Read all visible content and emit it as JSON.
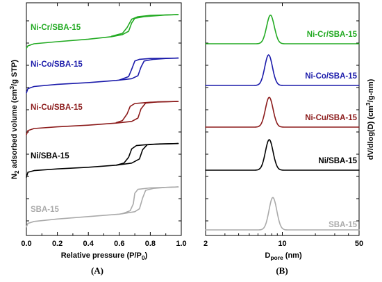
{
  "chart_data": [
    {
      "type": "line",
      "panel_label": "(A)",
      "xlabel": "Relative pressure (P/P",
      "xlabel_sub": "0",
      "xlabel_end": ")",
      "ylabel_prefix": "N",
      "ylabel_sub": "2",
      "ylabel_mid": " adsorbed volume (cm",
      "ylabel_sup": "3",
      "ylabel_end": "/g STP)",
      "xlim": [
        0.0,
        1.0
      ],
      "xticks": [
        "0.0",
        "0.2",
        "0.4",
        "0.6",
        "0.8",
        "1.0"
      ],
      "y_ticks_labeled": false,
      "grid": false,
      "legend": "inline labels",
      "series": [
        {
          "name": "Ni-Cr/SBA-15",
          "color": "#22aa22",
          "adsorption": [
            [
              0.0,
              0.14
            ],
            [
              0.01,
              0.2
            ],
            [
              0.05,
              0.25
            ],
            [
              0.2,
              0.3
            ],
            [
              0.4,
              0.36
            ],
            [
              0.55,
              0.42
            ],
            [
              0.62,
              0.47
            ],
            [
              0.66,
              0.55
            ],
            [
              0.68,
              0.75
            ],
            [
              0.7,
              0.86
            ],
            [
              0.76,
              0.9
            ],
            [
              0.9,
              0.94
            ],
            [
              0.98,
              0.95
            ]
          ],
          "desorption": [
            [
              0.98,
              0.95
            ],
            [
              0.8,
              0.93
            ],
            [
              0.72,
              0.9
            ],
            [
              0.68,
              0.84
            ],
            [
              0.65,
              0.64
            ],
            [
              0.62,
              0.5
            ],
            [
              0.55,
              0.43
            ]
          ]
        },
        {
          "name": "Ni-Co/SBA-15",
          "color": "#1a1aaa",
          "adsorption": [
            [
              0.0,
              0.1
            ],
            [
              0.01,
              0.2
            ],
            [
              0.05,
              0.25
            ],
            [
              0.2,
              0.3
            ],
            [
              0.4,
              0.34
            ],
            [
              0.58,
              0.39
            ],
            [
              0.68,
              0.43
            ],
            [
              0.72,
              0.5
            ],
            [
              0.74,
              0.7
            ],
            [
              0.76,
              0.84
            ],
            [
              0.82,
              0.88
            ],
            [
              0.9,
              0.9
            ],
            [
              0.98,
              0.91
            ]
          ],
          "desorption": [
            [
              0.98,
              0.91
            ],
            [
              0.8,
              0.9
            ],
            [
              0.73,
              0.88
            ],
            [
              0.7,
              0.84
            ],
            [
              0.68,
              0.65
            ],
            [
              0.66,
              0.48
            ],
            [
              0.6,
              0.4
            ]
          ]
        },
        {
          "name": "Ni-Cu/SBA-15",
          "color": "#8b1a1a",
          "adsorption": [
            [
              0.0,
              0.1
            ],
            [
              0.01,
              0.2
            ],
            [
              0.05,
              0.25
            ],
            [
              0.2,
              0.29
            ],
            [
              0.4,
              0.33
            ],
            [
              0.58,
              0.38
            ],
            [
              0.68,
              0.42
            ],
            [
              0.72,
              0.5
            ],
            [
              0.74,
              0.72
            ],
            [
              0.77,
              0.86
            ],
            [
              0.85,
              0.89
            ],
            [
              0.98,
              0.9
            ]
          ],
          "desorption": [
            [
              0.98,
              0.9
            ],
            [
              0.8,
              0.88
            ],
            [
              0.7,
              0.85
            ],
            [
              0.67,
              0.78
            ],
            [
              0.65,
              0.6
            ],
            [
              0.62,
              0.44
            ],
            [
              0.58,
              0.39
            ]
          ]
        },
        {
          "name": "Ni/SBA-15",
          "color": "#000000",
          "adsorption": [
            [
              0.0,
              0.08
            ],
            [
              0.01,
              0.2
            ],
            [
              0.05,
              0.24
            ],
            [
              0.2,
              0.28
            ],
            [
              0.4,
              0.32
            ],
            [
              0.58,
              0.37
            ],
            [
              0.68,
              0.42
            ],
            [
              0.73,
              0.52
            ],
            [
              0.75,
              0.74
            ],
            [
              0.78,
              0.86
            ],
            [
              0.86,
              0.88
            ],
            [
              0.98,
              0.89
            ]
          ],
          "desorption": [
            [
              0.98,
              0.89
            ],
            [
              0.8,
              0.87
            ],
            [
              0.71,
              0.84
            ],
            [
              0.68,
              0.76
            ],
            [
              0.66,
              0.56
            ],
            [
              0.63,
              0.42
            ],
            [
              0.58,
              0.37
            ]
          ]
        },
        {
          "name": "SBA-15",
          "color": "#aaaaaa",
          "adsorption": [
            [
              0.0,
              0.05
            ],
            [
              0.01,
              0.12
            ],
            [
              0.05,
              0.16
            ],
            [
              0.2,
              0.21
            ],
            [
              0.4,
              0.26
            ],
            [
              0.6,
              0.31
            ],
            [
              0.7,
              0.36
            ],
            [
              0.73,
              0.42
            ],
            [
              0.75,
              0.64
            ],
            [
              0.77,
              0.8
            ],
            [
              0.82,
              0.84
            ],
            [
              0.9,
              0.86
            ],
            [
              0.98,
              0.87
            ]
          ],
          "desorption": [
            [
              0.98,
              0.87
            ],
            [
              0.8,
              0.85
            ],
            [
              0.72,
              0.82
            ],
            [
              0.7,
              0.74
            ],
            [
              0.69,
              0.52
            ],
            [
              0.67,
              0.38
            ],
            [
              0.62,
              0.32
            ]
          ]
        }
      ]
    },
    {
      "type": "line",
      "panel_label": "(B)",
      "xlabel": "D",
      "xlabel_sub": "pore",
      "xlabel_end": " (nm)",
      "ylabel_prefix": "dV/dlog(D) (cm",
      "ylabel_sup": "3",
      "ylabel_end": "/g-nm)",
      "xscale": "log",
      "xlim": [
        2,
        50
      ],
      "xticks": [
        "2",
        "10",
        "50"
      ],
      "y_ticks_labeled": false,
      "grid": false,
      "legend": "inline labels",
      "series": [
        {
          "name": "Ni-Cr/SBA-15",
          "color": "#22aa22",
          "peak_nm": 7.8,
          "peak_height": 0.75
        },
        {
          "name": "Ni-Co/SBA-15",
          "color": "#1a1aaa",
          "peak_nm": 7.5,
          "peak_height": 0.8
        },
        {
          "name": "Ni-Cu/SBA-15",
          "color": "#8b1a1a",
          "peak_nm": 7.6,
          "peak_height": 0.78
        },
        {
          "name": "Ni/SBA-15",
          "color": "#000000",
          "peak_nm": 7.6,
          "peak_height": 0.8
        },
        {
          "name": "SBA-15",
          "color": "#aaaaaa",
          "peak_nm": 8.2,
          "peak_height": 0.85
        }
      ]
    }
  ]
}
